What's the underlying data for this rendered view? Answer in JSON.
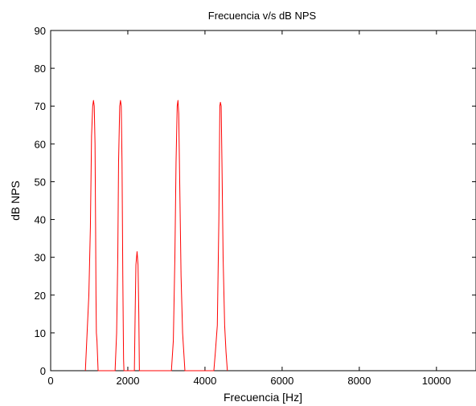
{
  "chart_data": {
    "type": "line",
    "title": "Frecuencia v/s dB NPS",
    "xlabel": "Frecuencia [Hz]",
    "ylabel": "dB NPS",
    "xlim": [
      0,
      11025
    ],
    "ylim": [
      0,
      90
    ],
    "x_ticks": [
      0,
      2000,
      4000,
      6000,
      8000,
      10000
    ],
    "y_ticks": [
      0,
      10,
      20,
      30,
      40,
      50,
      60,
      70,
      80,
      90
    ],
    "grid": false,
    "legend": "none",
    "series": [
      {
        "color": "#ff0000",
        "points": [
          [
            900,
            0
          ],
          [
            990,
            20
          ],
          [
            1030,
            38
          ],
          [
            1060,
            62
          ],
          [
            1090,
            70
          ],
          [
            1110,
            71.5
          ],
          [
            1130,
            70
          ],
          [
            1150,
            60
          ],
          [
            1165,
            38
          ],
          [
            1175,
            20
          ],
          [
            1185,
            10
          ],
          [
            1200,
            8
          ],
          [
            1230,
            0
          ],
          [
            1670,
            0
          ],
          [
            1710,
            10
          ],
          [
            1740,
            30
          ],
          [
            1760,
            55
          ],
          [
            1790,
            70
          ],
          [
            1810,
            71.5
          ],
          [
            1830,
            70
          ],
          [
            1850,
            55
          ],
          [
            1870,
            25
          ],
          [
            1885,
            8
          ],
          [
            1890,
            3
          ],
          [
            1900,
            0
          ],
          [
            2170,
            0
          ],
          [
            2190,
            15
          ],
          [
            2210,
            28
          ],
          [
            2240,
            31.5
          ],
          [
            2265,
            28
          ],
          [
            2285,
            15
          ],
          [
            2300,
            0
          ],
          [
            3130,
            0
          ],
          [
            3180,
            8
          ],
          [
            3220,
            30
          ],
          [
            3250,
            55
          ],
          [
            3280,
            70
          ],
          [
            3300,
            71.5
          ],
          [
            3320,
            68
          ],
          [
            3345,
            50
          ],
          [
            3380,
            25
          ],
          [
            3420,
            10
          ],
          [
            3480,
            0
          ],
          [
            4230,
            0
          ],
          [
            4270,
            5
          ],
          [
            4320,
            12
          ],
          [
            4360,
            40
          ],
          [
            4385,
            70
          ],
          [
            4400,
            71
          ],
          [
            4420,
            70
          ],
          [
            4440,
            55
          ],
          [
            4470,
            30
          ],
          [
            4510,
            12
          ],
          [
            4545,
            5
          ],
          [
            4580,
            0
          ]
        ]
      }
    ]
  }
}
